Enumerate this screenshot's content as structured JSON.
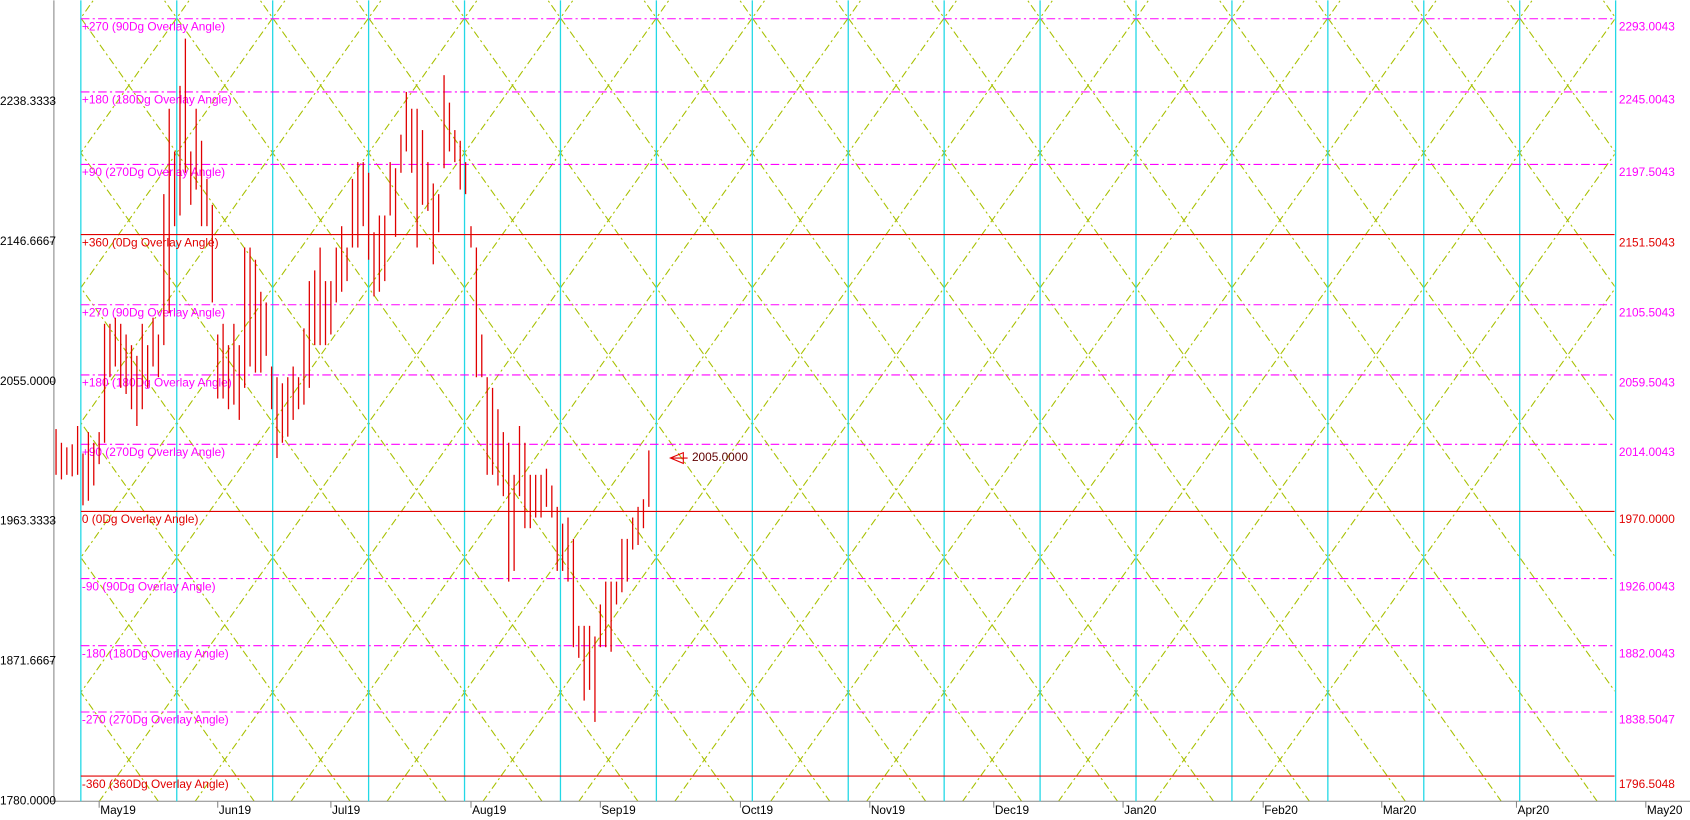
{
  "chart_data": {
    "type": "ohlc",
    "color": "#e00000",
    "x": [
      0,
      1,
      2,
      3,
      4,
      5,
      6,
      7,
      8,
      9,
      10,
      11,
      12,
      13,
      14,
      15,
      16,
      17,
      18,
      19,
      20,
      21,
      22,
      23,
      24,
      25,
      26,
      27,
      28,
      29,
      30,
      31,
      32,
      33,
      34,
      35,
      36,
      37,
      38,
      39,
      40,
      41,
      42,
      43,
      44,
      45,
      46,
      47,
      48,
      49,
      50,
      51,
      52,
      53,
      54,
      55,
      56,
      57,
      58,
      59,
      60,
      61,
      62,
      63,
      64,
      65,
      66,
      67,
      68,
      69,
      70,
      71,
      72,
      73,
      74,
      75,
      76,
      77,
      78,
      79,
      80,
      81,
      82,
      83,
      84,
      85,
      86,
      87,
      88,
      89,
      90,
      91,
      92,
      93,
      94,
      95,
      96,
      97,
      98,
      99,
      100,
      101,
      102,
      103,
      104,
      105,
      106,
      107,
      108,
      109,
      110
    ],
    "high": [
      2024,
      2015,
      2012,
      2014,
      2026,
      2008,
      2022,
      2015,
      2022,
      2093,
      2093,
      2097,
      2093,
      2086,
      2079,
      2072,
      2093,
      2079,
      2097,
      2086,
      2178,
      2234,
      2206,
      2249,
      2280,
      2206,
      2234,
      2213,
      2188,
      2171,
      2086,
      2093,
      2079,
      2093,
      2079,
      2143,
      2143,
      2135,
      2114,
      2107,
      2065,
      2058,
      2054,
      2058,
      2065,
      2058,
      2090,
      2121,
      2128,
      2143,
      2121,
      2121,
      2143,
      2157,
      2143,
      2188,
      2199,
      2199,
      2192,
      2153,
      2164,
      2164,
      2199,
      2195,
      2217,
      2245,
      2234,
      2234,
      2220,
      2199,
      2185,
      2178,
      2256,
      2238,
      2220,
      2213,
      2199,
      2157,
      2143,
      2086,
      2058,
      2051,
      2037,
      2022,
      2015,
      1994,
      2026,
      2015,
      1994,
      1994,
      1994,
      1998,
      1987,
      1973,
      1962,
      1966,
      1952,
      1895,
      1895,
      1895,
      1888,
      1909,
      1924,
      1924,
      1924,
      1952,
      1952,
      1966,
      1973,
      1978,
      2010
    ],
    "low": [
      1994,
      1991,
      1994,
      1993,
      1994,
      1974,
      1977,
      1987,
      2001,
      2015,
      2058,
      2065,
      2051,
      2047,
      2037,
      2026,
      2037,
      2051,
      2065,
      2058,
      2079,
      2100,
      2157,
      2164,
      2192,
      2171,
      2181,
      2157,
      2157,
      2107,
      2044,
      2044,
      2037,
      2040,
      2030,
      2051,
      2065,
      2061,
      2061,
      2072,
      2037,
      2005,
      2015,
      2019,
      2030,
      2037,
      2040,
      2051,
      2079,
      2079,
      2079,
      2086,
      2107,
      2114,
      2121,
      2143,
      2143,
      2157,
      2135,
      2111,
      2114,
      2121,
      2164,
      2150,
      2192,
      2206,
      2192,
      2143,
      2171,
      2167,
      2132,
      2153,
      2195,
      2206,
      2199,
      2181,
      2178,
      2143,
      2058,
      2058,
      1994,
      1994,
      1987,
      1980,
      1924,
      1931,
      1980,
      1959,
      1959,
      1966,
      1966,
      1973,
      1966,
      1931,
      1931,
      1924,
      1881,
      1874,
      1846,
      1853,
      1832,
      1881,
      1881,
      1878,
      1909,
      1917,
      1924,
      1945,
      1948,
      1959,
      1973
    ],
    "xlim": [
      -0.4,
      303.2
    ],
    "xticks": [
      {
        "value": 8,
        "label": "May19"
      },
      {
        "value": 30,
        "label": "Jun19"
      },
      {
        "value": 51,
        "label": "Jul19"
      },
      {
        "value": 77,
        "label": "Aug19"
      },
      {
        "value": 101,
        "label": "Sep19"
      },
      {
        "value": 127,
        "label": "Oct19"
      },
      {
        "value": 151,
        "label": "Nov19"
      },
      {
        "value": 174,
        "label": "Dec19"
      },
      {
        "value": 198,
        "label": "Jan20"
      },
      {
        "value": 224,
        "label": "Feb20"
      },
      {
        "value": 246,
        "label": "Mar20"
      },
      {
        "value": 271,
        "label": "Apr20"
      },
      {
        "value": 295,
        "label": "May20"
      }
    ],
    "ylim": [
      1780,
      2305
    ],
    "yticks": [
      {
        "value": 2238.3333,
        "label": "2238.3333"
      },
      {
        "value": 2146.6667,
        "label": "2146.6667"
      },
      {
        "value": 2055,
        "label": "2055.0000"
      },
      {
        "value": 1963.3333,
        "label": "1963.3333"
      },
      {
        "value": 1871.6667,
        "label": "1871.6667"
      },
      {
        "value": 1780,
        "label": "1780.0000"
      }
    ],
    "levels": [
      {
        "name": "+270 (90Dg Overlay Angle)",
        "value": 2293.0043,
        "value_label": "2293.0043",
        "color": "#ff00ff",
        "style": "dashed"
      },
      {
        "name": "+180 (180Dg Overlay Angle)",
        "value": 2245.0043,
        "value_label": "2245.0043",
        "color": "#ff00ff",
        "style": "dashed"
      },
      {
        "name": "+90 (270Dg Overlay Angle)",
        "value": 2197.5043,
        "value_label": "2197.5043",
        "color": "#ff00ff",
        "style": "dashed"
      },
      {
        "name": "+360 (0Dg Overlay Angle)",
        "value": 2151.5043,
        "value_label": "2151.5043",
        "color": "#e00000",
        "style": "solid"
      },
      {
        "name": "+270 (90Dg Overlay Angle)",
        "value": 2105.5043,
        "value_label": "2105.5043",
        "color": "#ff00ff",
        "style": "dashed"
      },
      {
        "name": "+180 (180Dg Overlay Angle)",
        "value": 2059.5043,
        "value_label": "2059.5043",
        "color": "#ff00ff",
        "style": "dashed"
      },
      {
        "name": "+90 (270Dg Overlay Angle)",
        "value": 2014.0043,
        "value_label": "2014.0043",
        "color": "#ff00ff",
        "style": "dashed"
      },
      {
        "name": "0 (0Dg Overlay Angle)",
        "value": 1970,
        "value_label": "1970.0000",
        "color": "#e00000",
        "style": "solid"
      },
      {
        "name": "-90 (90Dg Overlay Angle)",
        "value": 1926.0043,
        "value_label": "1926.0043",
        "color": "#ff00ff",
        "style": "dashed"
      },
      {
        "name": "-180 (180Dg Overlay Angle)",
        "value": 1882.0043,
        "value_label": "1882.0043",
        "color": "#ff00ff",
        "style": "dashed"
      },
      {
        "name": "-270 (270Dg Overlay Angle)",
        "value": 1838.5047,
        "value_label": "1838.5047",
        "color": "#ff00ff",
        "style": "dashed"
      },
      {
        "name": "-360 (360Dg Overlay Angle)",
        "value": 1796.5048,
        "value_label": "1796.5048",
        "color": "#e00000",
        "style": "solid"
      }
    ],
    "last": {
      "value": 2005,
      "label": "2005.0000"
    }
  }
}
